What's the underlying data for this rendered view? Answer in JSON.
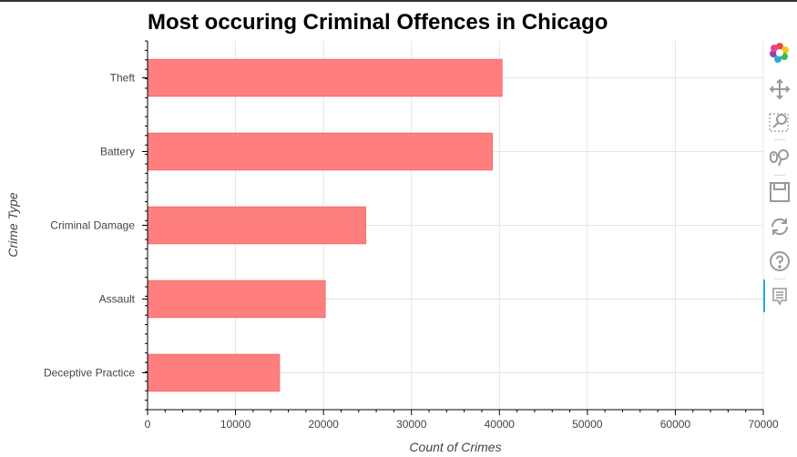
{
  "chart_data": {
    "type": "bar",
    "orientation": "horizontal",
    "title": "Most occuring Criminal Offences in Chicago",
    "xlabel": "Count of Crimes",
    "ylabel": "Crime Type",
    "categories": [
      "Theft",
      "Battery",
      "Criminal Damage",
      "Assault",
      "Deceptive Practice"
    ],
    "values": [
      40300,
      39200,
      24800,
      20200,
      15000
    ],
    "xlim": [
      0,
      70000
    ],
    "xticks": [
      0,
      10000,
      20000,
      30000,
      40000,
      50000,
      60000,
      70000
    ],
    "xtick_labels": [
      "0",
      "10000",
      "20000",
      "30000",
      "40000",
      "50000",
      "60000",
      "70000"
    ],
    "grid": true,
    "bar_color": "#ff7f7f",
    "bar_edge_color": "#f26d6d"
  },
  "toolbar": {
    "tools": [
      {
        "name": "bokeh-logo-icon"
      },
      {
        "name": "pan-icon"
      },
      {
        "name": "box-zoom-icon"
      },
      {
        "name": "wheel-zoom-icon"
      },
      {
        "name": "save-icon"
      },
      {
        "name": "reset-icon"
      },
      {
        "name": "help-icon"
      },
      {
        "name": "hover-icon"
      }
    ]
  }
}
